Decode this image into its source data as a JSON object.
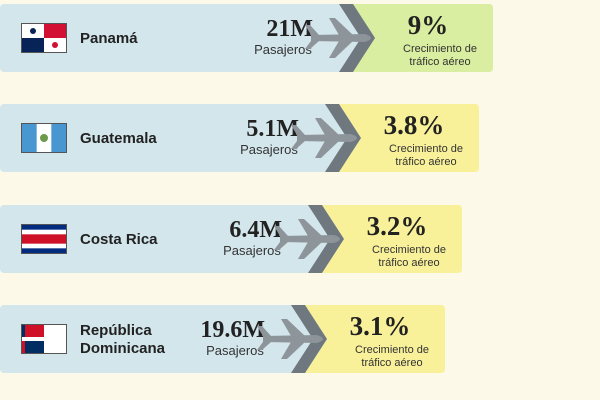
{
  "rows": [
    {
      "country": [
        "Panamá"
      ],
      "passengers": "21M",
      "passengers_label": "Pasajeros",
      "growth": "9%",
      "growth_label": [
        "Crecimiento de",
        "tráfico aéreo"
      ]
    },
    {
      "country": [
        "Guatemala"
      ],
      "passengers": "5.1M",
      "passengers_label": "Pasajeros",
      "growth": "3.8%",
      "growth_label": [
        "Crecimiento de",
        "tráfico aéreo"
      ]
    },
    {
      "country": [
        "Costa Rica"
      ],
      "passengers": "6.4M",
      "passengers_label": "Pasajeros",
      "growth": "3.2%",
      "growth_label": [
        "Crecimiento de",
        "tráfico aéreo"
      ]
    },
    {
      "country": [
        "República",
        "Dominicana"
      ],
      "passengers": "19.6M",
      "passengers_label": "Pasajeros",
      "growth": "3.1%",
      "growth_label": [
        "Crecimiento de",
        "tráfico aéreo"
      ]
    }
  ]
}
